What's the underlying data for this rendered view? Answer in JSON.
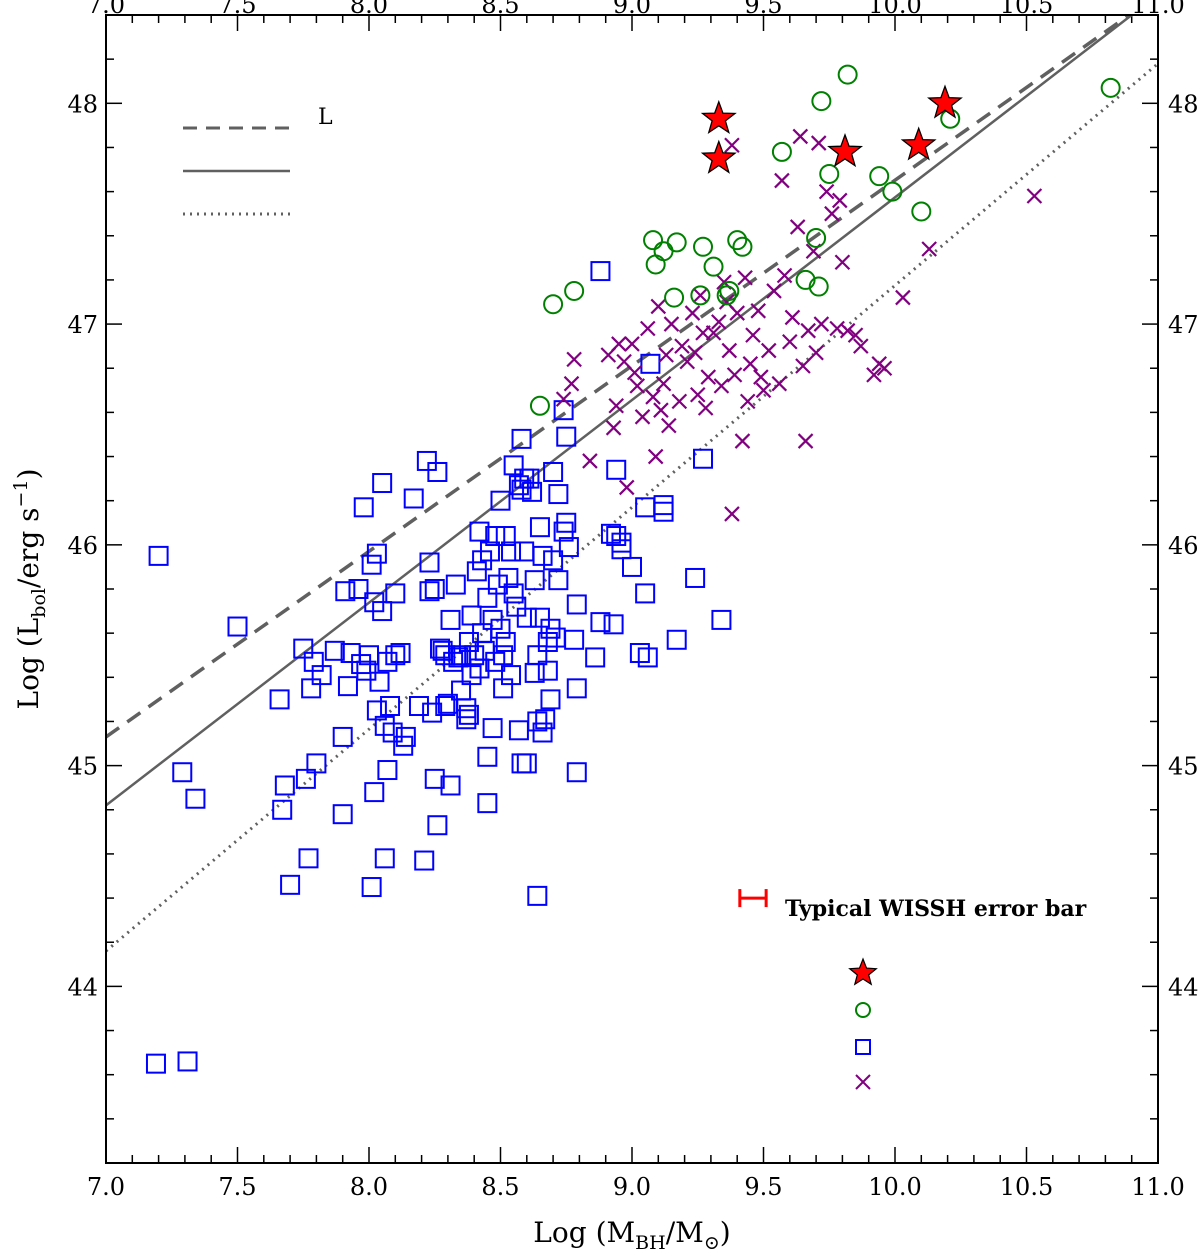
{
  "chart_data": {
    "type": "scatter",
    "title": "",
    "xlabel_main": "Log (M",
    "xlabel_sub1": "BH",
    "xlabel_mid": "/M",
    "xlabel_sub2": "⊙",
    "xlabel_end": ")",
    "ylabel_main": "Log (L",
    "ylabel_sub": "bol",
    "ylabel_mid": "/erg s",
    "ylabel_sup": "−1",
    "ylabel_end": ")",
    "xlim": [
      7.0,
      11.0
    ],
    "ylim": [
      43.2,
      48.4
    ],
    "x_ticks": [
      "7.0",
      "7.5",
      "8.0",
      "8.5",
      "9.0",
      "9.5",
      "10.0",
      "10.5",
      "11.0"
    ],
    "y_ticks": [
      "44",
      "45",
      "46",
      "47",
      "48"
    ],
    "colors": {
      "stars": "#ff0000",
      "circles": "#008000",
      "squares": "#0000ff",
      "crosses": "#800080",
      "lines": "#606060",
      "errorbar": "#ff0000"
    },
    "legend_lines": [
      {
        "style": "dashed",
        "label": "L"
      },
      {
        "style": "solid",
        "label": ""
      },
      {
        "style": "dotted",
        "label": ""
      }
    ],
    "reference_lines": [
      {
        "style": "dashed",
        "x": [
          7.0,
          10.95
        ],
        "y": [
          45.13,
          48.45
        ]
      },
      {
        "style": "solid",
        "x": [
          7.0,
          10.9
        ],
        "y": [
          44.82,
          48.4
        ]
      },
      {
        "style": "dotted",
        "x": [
          7.0,
          11.0
        ],
        "y": [
          44.16,
          48.18
        ]
      }
    ],
    "error_bar_label": "Typical WISSH error bar",
    "error_bar": {
      "x": [
        9.41,
        9.51
      ],
      "y": 44.4
    },
    "marker_key": [
      "star",
      "circle",
      "square",
      "cross"
    ],
    "series": [
      {
        "marker": "star",
        "color": "#ff0000",
        "points": [
          [
            9.33,
            47.93
          ],
          [
            9.33,
            47.75
          ],
          [
            9.81,
            47.78
          ],
          [
            10.09,
            47.81
          ],
          [
            10.19,
            48.0
          ]
        ]
      },
      {
        "marker": "circle",
        "color": "#008000",
        "points": [
          [
            8.65,
            46.63
          ],
          [
            8.7,
            47.09
          ],
          [
            8.78,
            47.15
          ],
          [
            9.08,
            47.38
          ],
          [
            9.09,
            47.27
          ],
          [
            9.12,
            47.33
          ],
          [
            9.16,
            47.12
          ],
          [
            9.17,
            47.37
          ],
          [
            9.26,
            47.13
          ],
          [
            9.27,
            47.35
          ],
          [
            9.31,
            47.26
          ],
          [
            9.36,
            47.13
          ],
          [
            9.37,
            47.15
          ],
          [
            9.4,
            47.38
          ],
          [
            9.42,
            47.35
          ],
          [
            9.57,
            47.78
          ],
          [
            9.66,
            47.2
          ],
          [
            9.7,
            47.39
          ],
          [
            9.71,
            47.17
          ],
          [
            9.72,
            48.01
          ],
          [
            9.75,
            47.68
          ],
          [
            9.82,
            48.13
          ],
          [
            9.94,
            47.67
          ],
          [
            9.99,
            47.6
          ],
          [
            10.1,
            47.51
          ],
          [
            10.21,
            47.93
          ],
          [
            10.82,
            48.07
          ]
        ]
      },
      {
        "marker": "square",
        "color": "#0000ff",
        "points": [
          [
            7.19,
            43.65
          ],
          [
            7.2,
            45.95
          ],
          [
            7.29,
            44.97
          ],
          [
            7.31,
            43.66
          ],
          [
            7.34,
            44.85
          ],
          [
            7.5,
            45.63
          ],
          [
            7.66,
            45.3
          ],
          [
            7.67,
            44.8
          ],
          [
            7.68,
            44.91
          ],
          [
            7.7,
            44.46
          ],
          [
            7.75,
            45.53
          ],
          [
            7.76,
            44.94
          ],
          [
            7.77,
            44.58
          ],
          [
            7.78,
            45.35
          ],
          [
            7.79,
            45.47
          ],
          [
            7.8,
            45.01
          ],
          [
            7.82,
            45.41
          ],
          [
            7.87,
            45.52
          ],
          [
            7.9,
            44.78
          ],
          [
            7.9,
            45.13
          ],
          [
            7.91,
            45.79
          ],
          [
            7.92,
            45.36
          ],
          [
            7.93,
            45.51
          ],
          [
            7.96,
            45.8
          ],
          [
            7.97,
            45.46
          ],
          [
            7.98,
            46.17
          ],
          [
            7.99,
            45.43
          ],
          [
            8.0,
            45.5
          ],
          [
            8.01,
            44.45
          ],
          [
            8.01,
            45.91
          ],
          [
            8.02,
            44.88
          ],
          [
            8.02,
            45.74
          ],
          [
            8.03,
            45.25
          ],
          [
            8.03,
            45.96
          ],
          [
            8.04,
            45.38
          ],
          [
            8.05,
            45.7
          ],
          [
            8.05,
            46.28
          ],
          [
            8.06,
            45.18
          ],
          [
            8.06,
            44.58
          ],
          [
            8.07,
            45.47
          ],
          [
            8.07,
            44.98
          ],
          [
            8.08,
            45.27
          ],
          [
            8.09,
            45.15
          ],
          [
            8.1,
            45.5
          ],
          [
            8.1,
            45.78
          ],
          [
            8.12,
            45.51
          ],
          [
            8.13,
            45.09
          ],
          [
            8.14,
            45.13
          ],
          [
            8.17,
            46.21
          ],
          [
            8.19,
            45.27
          ],
          [
            8.21,
            44.57
          ],
          [
            8.22,
            46.38
          ],
          [
            8.23,
            45.92
          ],
          [
            8.23,
            45.79
          ],
          [
            8.24,
            45.24
          ],
          [
            8.25,
            45.8
          ],
          [
            8.25,
            44.94
          ],
          [
            8.26,
            44.73
          ],
          [
            8.26,
            46.33
          ],
          [
            8.27,
            45.53
          ],
          [
            8.28,
            45.52
          ],
          [
            8.29,
            45.5
          ],
          [
            8.29,
            45.27
          ],
          [
            8.3,
            45.28
          ],
          [
            8.31,
            44.91
          ],
          [
            8.31,
            45.66
          ],
          [
            8.32,
            45.47
          ],
          [
            8.33,
            45.82
          ],
          [
            8.34,
            45.49
          ],
          [
            8.35,
            45.34
          ],
          [
            8.35,
            45.5
          ],
          [
            8.37,
            45.21
          ],
          [
            8.37,
            45.26
          ],
          [
            8.38,
            45.56
          ],
          [
            8.38,
            45.23
          ],
          [
            8.39,
            45.41
          ],
          [
            8.39,
            45.68
          ],
          [
            8.4,
            45.5
          ],
          [
            8.41,
            45.88
          ],
          [
            8.42,
            45.44
          ],
          [
            8.42,
            46.06
          ],
          [
            8.43,
            45.93
          ],
          [
            8.43,
            45.6
          ],
          [
            8.44,
            45.52
          ],
          [
            8.45,
            45.76
          ],
          [
            8.45,
            45.04
          ],
          [
            8.45,
            44.83
          ],
          [
            8.46,
            45.97
          ],
          [
            8.47,
            45.66
          ],
          [
            8.47,
            45.17
          ],
          [
            8.48,
            46.04
          ],
          [
            8.48,
            45.47
          ],
          [
            8.49,
            45.82
          ],
          [
            8.5,
            45.62
          ],
          [
            8.5,
            46.2
          ],
          [
            8.51,
            45.35
          ],
          [
            8.51,
            45.5
          ],
          [
            8.52,
            45.56
          ],
          [
            8.52,
            46.04
          ],
          [
            8.53,
            45.85
          ],
          [
            8.54,
            45.41
          ],
          [
            8.54,
            45.97
          ],
          [
            8.55,
            45.78
          ],
          [
            8.55,
            46.36
          ],
          [
            8.56,
            45.72
          ],
          [
            8.57,
            46.27
          ],
          [
            8.57,
            45.16
          ],
          [
            8.58,
            46.48
          ],
          [
            8.58,
            46.25
          ],
          [
            8.58,
            45.01
          ],
          [
            8.59,
            46.3
          ],
          [
            8.59,
            45.97
          ],
          [
            8.6,
            45.67
          ],
          [
            8.6,
            45.01
          ],
          [
            8.61,
            46.3
          ],
          [
            8.62,
            46.24
          ],
          [
            8.63,
            45.84
          ],
          [
            8.63,
            45.42
          ],
          [
            8.64,
            45.2
          ],
          [
            8.64,
            45.5
          ],
          [
            8.64,
            44.41
          ],
          [
            8.65,
            46.08
          ],
          [
            8.65,
            45.67
          ],
          [
            8.66,
            45.15
          ],
          [
            8.66,
            45.95
          ],
          [
            8.67,
            45.21
          ],
          [
            8.68,
            45.43
          ],
          [
            8.68,
            45.56
          ],
          [
            8.69,
            45.62
          ],
          [
            8.69,
            45.3
          ],
          [
            8.7,
            46.33
          ],
          [
            8.7,
            45.93
          ],
          [
            8.71,
            45.58
          ],
          [
            8.72,
            45.84
          ],
          [
            8.72,
            46.23
          ],
          [
            8.74,
            46.06
          ],
          [
            8.74,
            46.61
          ],
          [
            8.75,
            46.49
          ],
          [
            8.75,
            46.1
          ],
          [
            8.76,
            45.99
          ],
          [
            8.78,
            45.57
          ],
          [
            8.79,
            45.35
          ],
          [
            8.79,
            45.73
          ],
          [
            8.79,
            44.97
          ],
          [
            8.86,
            45.49
          ],
          [
            8.88,
            47.24
          ],
          [
            8.88,
            45.65
          ],
          [
            8.92,
            46.05
          ],
          [
            8.93,
            45.64
          ],
          [
            8.94,
            46.34
          ],
          [
            8.94,
            46.04
          ],
          [
            8.96,
            45.98
          ],
          [
            8.96,
            46.01
          ],
          [
            9.0,
            45.9
          ],
          [
            9.03,
            45.51
          ],
          [
            9.05,
            45.78
          ],
          [
            9.05,
            46.17
          ],
          [
            9.06,
            45.49
          ],
          [
            9.07,
            46.82
          ],
          [
            9.12,
            46.15
          ],
          [
            9.12,
            46.18
          ],
          [
            9.17,
            45.57
          ],
          [
            9.24,
            45.85
          ],
          [
            9.27,
            46.39
          ],
          [
            9.34,
            45.66
          ]
        ]
      },
      {
        "marker": "cross",
        "color": "#800080",
        "points": [
          [
            8.74,
            46.66
          ],
          [
            8.77,
            46.73
          ],
          [
            8.78,
            46.84
          ],
          [
            8.84,
            46.38
          ],
          [
            8.91,
            46.86
          ],
          [
            8.93,
            46.53
          ],
          [
            8.94,
            46.63
          ],
          [
            8.95,
            46.91
          ],
          [
            8.97,
            46.83
          ],
          [
            8.98,
            46.26
          ],
          [
            9.0,
            46.91
          ],
          [
            9.01,
            46.78
          ],
          [
            9.02,
            46.72
          ],
          [
            9.04,
            46.58
          ],
          [
            9.06,
            46.98
          ],
          [
            9.08,
            46.67
          ],
          [
            9.09,
            46.4
          ],
          [
            9.1,
            47.08
          ],
          [
            9.11,
            46.61
          ],
          [
            9.12,
            46.73
          ],
          [
            9.13,
            46.86
          ],
          [
            9.14,
            46.54
          ],
          [
            9.15,
            47.0
          ],
          [
            9.18,
            46.65
          ],
          [
            9.19,
            46.9
          ],
          [
            9.21,
            46.83
          ],
          [
            9.23,
            47.05
          ],
          [
            9.24,
            46.87
          ],
          [
            9.25,
            46.68
          ],
          [
            9.26,
            47.13
          ],
          [
            9.27,
            46.96
          ],
          [
            9.28,
            46.62
          ],
          [
            9.29,
            46.76
          ],
          [
            9.31,
            46.96
          ],
          [
            9.33,
            47.01
          ],
          [
            9.34,
            46.72
          ],
          [
            9.35,
            47.19
          ],
          [
            9.36,
            47.1
          ],
          [
            9.37,
            46.88
          ],
          [
            9.38,
            47.81
          ],
          [
            9.38,
            46.14
          ],
          [
            9.39,
            46.77
          ],
          [
            9.4,
            47.05
          ],
          [
            9.42,
            46.47
          ],
          [
            9.43,
            47.21
          ],
          [
            9.44,
            46.65
          ],
          [
            9.45,
            46.82
          ],
          [
            9.46,
            46.95
          ],
          [
            9.48,
            47.06
          ],
          [
            9.49,
            46.76
          ],
          [
            9.5,
            46.7
          ],
          [
            9.52,
            46.88
          ],
          [
            9.54,
            47.15
          ],
          [
            9.56,
            46.73
          ],
          [
            9.57,
            47.65
          ],
          [
            9.58,
            47.22
          ],
          [
            9.6,
            46.92
          ],
          [
            9.61,
            47.03
          ],
          [
            9.63,
            47.44
          ],
          [
            9.64,
            47.85
          ],
          [
            9.65,
            46.81
          ],
          [
            9.66,
            46.47
          ],
          [
            9.67,
            46.97
          ],
          [
            9.69,
            47.33
          ],
          [
            9.7,
            46.87
          ],
          [
            9.71,
            47.82
          ],
          [
            9.72,
            47.0
          ],
          [
            9.74,
            47.6
          ],
          [
            9.76,
            47.5
          ],
          [
            9.78,
            46.98
          ],
          [
            9.79,
            47.56
          ],
          [
            9.8,
            47.28
          ],
          [
            9.82,
            46.97
          ],
          [
            9.85,
            46.95
          ],
          [
            9.87,
            46.9
          ],
          [
            9.92,
            46.77
          ],
          [
            9.94,
            46.82
          ],
          [
            9.96,
            46.8
          ],
          [
            10.03,
            47.12
          ],
          [
            10.13,
            47.34
          ],
          [
            10.53,
            47.58
          ]
        ]
      }
    ]
  }
}
